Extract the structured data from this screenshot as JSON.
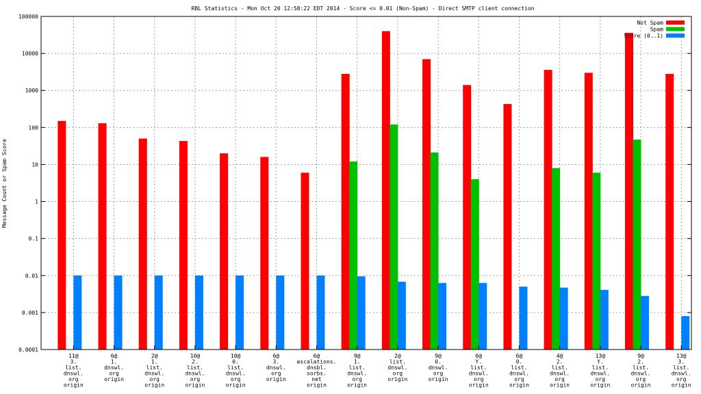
{
  "chart_data": {
    "type": "bar",
    "title": "RBL Statistics - Mon Oct 20 12:58:22 EDT 2014 - Score <= 0.01 (Non-Spam) - Direct SMTP client connection",
    "ylabel": "Message Count or Spam Score",
    "xlabel": "",
    "yscale": "log",
    "ylim": [
      0.0001,
      100000
    ],
    "yticks": [
      "0.0001",
      "0.001",
      "0.01",
      "0.1",
      "1",
      "10",
      "100",
      "1000",
      "10000",
      "100000"
    ],
    "grid": true,
    "legend_position": "top-right",
    "categories": [
      [
        "11@",
        "3.",
        "list.",
        "dnswl.",
        "org",
        "origin"
      ],
      [
        "6@",
        "1.",
        "dnswl.",
        "org",
        "origin"
      ],
      [
        "2@",
        "1.",
        "list.",
        "dnswl.",
        "org",
        "origin"
      ],
      [
        "10@",
        "2.",
        "list.",
        "dnswl.",
        "org",
        "origin"
      ],
      [
        "10@",
        "0.",
        "list.",
        "dnswl.",
        "org",
        "origin"
      ],
      [
        "6@",
        "3.",
        "dnswl.",
        "org",
        "origin"
      ],
      [
        "6@",
        "escalations.",
        "dnsbl.",
        "sorbs.",
        "net",
        "origin"
      ],
      [
        "9@",
        "1.",
        "list.",
        "dnswl.",
        "org",
        "origin"
      ],
      [
        "2@",
        "list.",
        "dnswl.",
        "org",
        "origin"
      ],
      [
        "9@",
        "0.",
        "dnswl.",
        "org",
        "origin"
      ],
      [
        "6@",
        "Y.",
        "list.",
        "dnswl.",
        "org",
        "origin"
      ],
      [
        "6@",
        "0.",
        "list.",
        "dnswl.",
        "org",
        "origin"
      ],
      [
        "4@",
        "2.",
        "list.",
        "dnswl.",
        "org",
        "origin"
      ],
      [
        "13@",
        "Y.",
        "list.",
        "dnswl.",
        "org",
        "origin"
      ],
      [
        "9@",
        "2.",
        "list.",
        "dnswl.",
        "org",
        "origin"
      ],
      [
        "13@",
        "3.",
        "list.",
        "dnswl.",
        "org",
        "origin"
      ]
    ],
    "series": [
      {
        "name": "Not Spam",
        "color": "#ff0000",
        "values": [
          150,
          130,
          50,
          43,
          20,
          16,
          6,
          2800,
          40000,
          7000,
          1400,
          430,
          3600,
          3000,
          36000,
          2800
        ]
      },
      {
        "name": "Spam",
        "color": "#00c000",
        "values": [
          null,
          null,
          null,
          null,
          null,
          null,
          null,
          12,
          120,
          21,
          4,
          null,
          8,
          6,
          47,
          null
        ]
      },
      {
        "name": "Score (0..1)",
        "color": "#0080ff",
        "values": [
          0.01,
          0.01,
          0.01,
          0.01,
          0.01,
          0.01,
          0.01,
          0.0095,
          0.0068,
          0.0063,
          0.0063,
          0.005,
          0.0047,
          0.0041,
          0.0028,
          0.0008
        ]
      }
    ]
  }
}
